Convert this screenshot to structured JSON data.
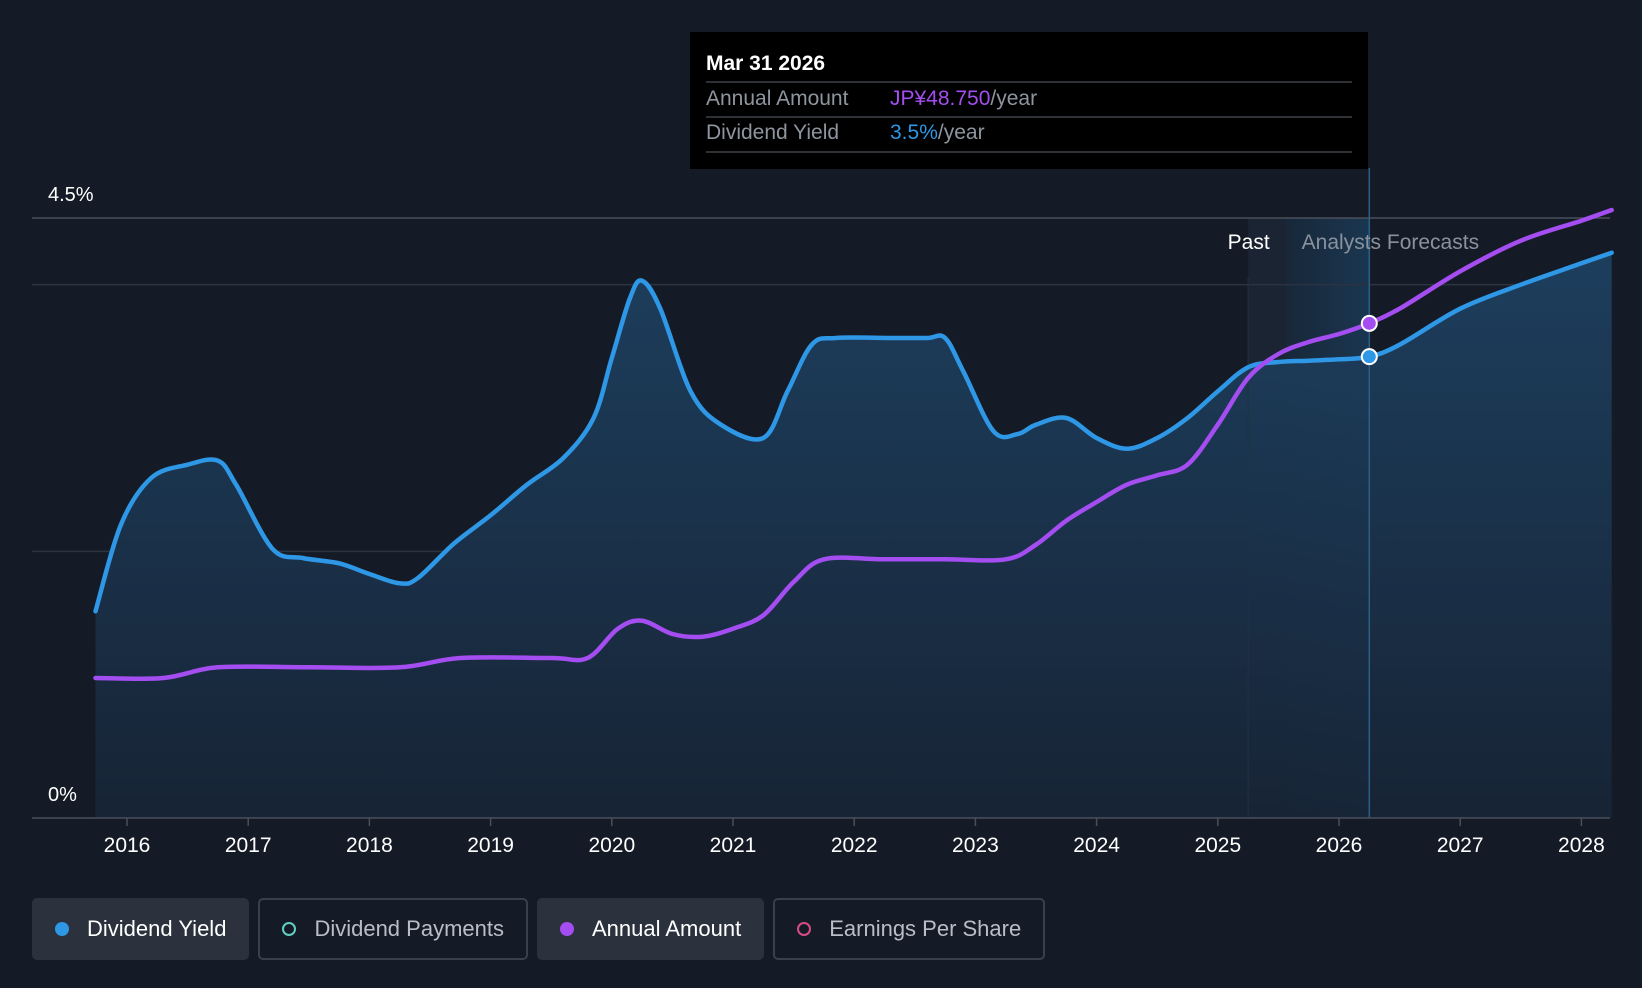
{
  "tooltip": {
    "date": "Mar 31 2026",
    "rows": [
      {
        "label": "Annual Amount",
        "value": "JP¥48.750",
        "unit": "/year",
        "color": "#a44df0"
      },
      {
        "label": "Dividend Yield",
        "value": "3.5%",
        "unit": "/year",
        "color": "#2e97e6"
      }
    ]
  },
  "regions": {
    "past_label": "Past",
    "forecast_label": "Analysts Forecasts"
  },
  "legend": [
    {
      "label": "Dividend Yield",
      "color": "#2e97e6",
      "style": "filled",
      "active": true
    },
    {
      "label": "Dividend Payments",
      "color": "#5fcfc0",
      "style": "hollow",
      "active": false
    },
    {
      "label": "Annual Amount",
      "color": "#a44df0",
      "style": "filled",
      "active": true
    },
    {
      "label": "Earnings Per Share",
      "color": "#d94a84",
      "style": "hollow",
      "active": false
    }
  ],
  "chart_data": {
    "type": "line",
    "x_ticks": [
      "2016",
      "2017",
      "2018",
      "2019",
      "2020",
      "2021",
      "2022",
      "2023",
      "2024",
      "2025",
      "2026",
      "2027",
      "2028"
    ],
    "y_tick_labels": [
      "4.5%",
      "0%"
    ],
    "ylim": [
      0,
      4.5
    ],
    "xlim": [
      2015.75,
      2028.25
    ],
    "past_end": 2025.25,
    "forecast_start": 2025.56,
    "highlight_x": 2026.25,
    "grid": true,
    "series": [
      {
        "name": "Dividend Yield",
        "color": "#2e97e6",
        "fill": true,
        "points": [
          [
            2015.74,
            1.55
          ],
          [
            2015.95,
            2.2
          ],
          [
            2016.2,
            2.55
          ],
          [
            2016.5,
            2.65
          ],
          [
            2016.75,
            2.68
          ],
          [
            2016.9,
            2.5
          ],
          [
            2017.2,
            2.02
          ],
          [
            2017.45,
            1.95
          ],
          [
            2017.75,
            1.91
          ],
          [
            2018.0,
            1.83
          ],
          [
            2018.25,
            1.76
          ],
          [
            2018.4,
            1.8
          ],
          [
            2018.7,
            2.06
          ],
          [
            2019.0,
            2.27
          ],
          [
            2019.3,
            2.5
          ],
          [
            2019.6,
            2.7
          ],
          [
            2019.85,
            3.0
          ],
          [
            2020.0,
            3.45
          ],
          [
            2020.15,
            3.9
          ],
          [
            2020.25,
            4.03
          ],
          [
            2020.4,
            3.82
          ],
          [
            2020.65,
            3.2
          ],
          [
            2020.9,
            2.95
          ],
          [
            2021.25,
            2.85
          ],
          [
            2021.45,
            3.2
          ],
          [
            2021.65,
            3.55
          ],
          [
            2021.85,
            3.6
          ],
          [
            2022.3,
            3.6
          ],
          [
            2022.6,
            3.6
          ],
          [
            2022.75,
            3.6
          ],
          [
            2022.9,
            3.35
          ],
          [
            2023.15,
            2.9
          ],
          [
            2023.35,
            2.88
          ],
          [
            2023.5,
            2.95
          ],
          [
            2023.75,
            3.0
          ],
          [
            2024.0,
            2.85
          ],
          [
            2024.25,
            2.77
          ],
          [
            2024.5,
            2.85
          ],
          [
            2024.75,
            3.0
          ],
          [
            2025.0,
            3.2
          ],
          [
            2025.25,
            3.38
          ],
          [
            2025.5,
            3.42
          ],
          [
            2025.75,
            3.43
          ],
          [
            2026.0,
            3.44
          ],
          [
            2026.25,
            3.46
          ],
          [
            2026.5,
            3.55
          ],
          [
            2027.0,
            3.82
          ],
          [
            2027.5,
            4.0
          ],
          [
            2028.0,
            4.16
          ],
          [
            2028.25,
            4.24
          ]
        ]
      },
      {
        "name": "Annual Amount",
        "color": "#a44df0",
        "fill": false,
        "points": [
          [
            2015.74,
            1.05
          ],
          [
            2016.3,
            1.05
          ],
          [
            2016.75,
            1.13
          ],
          [
            2017.5,
            1.13
          ],
          [
            2018.25,
            1.13
          ],
          [
            2018.75,
            1.2
          ],
          [
            2019.5,
            1.2
          ],
          [
            2019.8,
            1.2
          ],
          [
            2020.05,
            1.42
          ],
          [
            2020.25,
            1.48
          ],
          [
            2020.5,
            1.38
          ],
          [
            2020.75,
            1.36
          ],
          [
            2021.0,
            1.42
          ],
          [
            2021.25,
            1.52
          ],
          [
            2021.5,
            1.77
          ],
          [
            2021.75,
            1.94
          ],
          [
            2022.25,
            1.94
          ],
          [
            2022.75,
            1.94
          ],
          [
            2023.25,
            1.94
          ],
          [
            2023.5,
            2.05
          ],
          [
            2023.75,
            2.23
          ],
          [
            2024.0,
            2.37
          ],
          [
            2024.25,
            2.5
          ],
          [
            2024.5,
            2.57
          ],
          [
            2024.75,
            2.65
          ],
          [
            2025.0,
            2.95
          ],
          [
            2025.25,
            3.3
          ],
          [
            2025.5,
            3.48
          ],
          [
            2025.75,
            3.57
          ],
          [
            2026.0,
            3.63
          ],
          [
            2026.25,
            3.71
          ],
          [
            2026.5,
            3.82
          ],
          [
            2027.0,
            4.1
          ],
          [
            2027.5,
            4.33
          ],
          [
            2028.0,
            4.48
          ],
          [
            2028.25,
            4.56
          ]
        ]
      }
    ]
  }
}
